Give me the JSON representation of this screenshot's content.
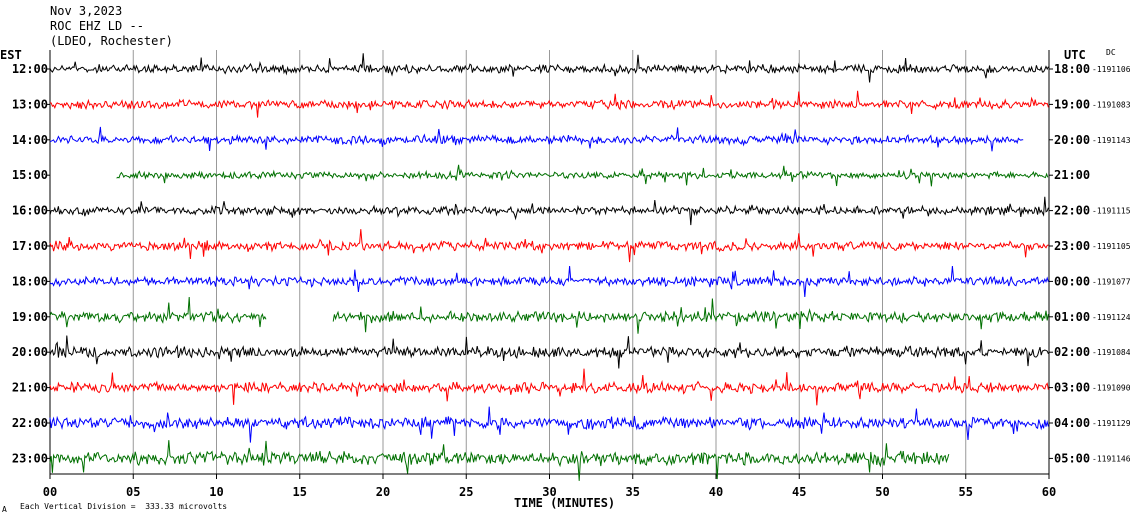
{
  "header": {
    "date": "Nov 3,2023",
    "station": "ROC EHZ LD --",
    "network": "(LDEO, Rochester)"
  },
  "left_zone": "EST",
  "right_zone": "UTC",
  "dc_label": "DC",
  "footer": {
    "scale_note": "Each Vertical Division =  333.33 microvolts",
    "corner_mark": "A"
  },
  "chart_data": {
    "type": "line",
    "title": "Nov 3,2023 ROC EHZ LD -- (LDEO, Rochester)",
    "xlabel": "TIME (MINUTES)",
    "ylabel": "",
    "xlim": [
      0,
      60
    ],
    "x_ticks": [
      "00",
      "05",
      "10",
      "15",
      "20",
      "25",
      "30",
      "35",
      "40",
      "45",
      "50",
      "55",
      "60"
    ],
    "grid": true,
    "trace_colors": [
      "#000000",
      "#ff0000",
      "#0000ff",
      "#007000"
    ],
    "rows": [
      {
        "est": "12:00",
        "utc": "18:00",
        "dc": "-1191106",
        "color": "#000000",
        "start": 0,
        "end": 60,
        "amp": 1.0
      },
      {
        "est": "13:00",
        "utc": "19:00",
        "dc": "-1191083",
        "color": "#ff0000",
        "start": 0,
        "end": 60,
        "amp": 1.0
      },
      {
        "est": "14:00",
        "utc": "20:00",
        "dc": "-1191143",
        "color": "#0000ff",
        "start": 0,
        "end": 58.5,
        "amp": 1.0
      },
      {
        "est": "15:00",
        "utc": "21:00",
        "dc": "",
        "color": "#007000",
        "start": 4,
        "end": 60,
        "amp": 0.8
      },
      {
        "est": "16:00",
        "utc": "22:00",
        "dc": "-1191115",
        "color": "#000000",
        "start": 0,
        "end": 60,
        "amp": 1.0
      },
      {
        "est": "17:00",
        "utc": "23:00",
        "dc": "-1191105",
        "color": "#ff0000",
        "start": 0,
        "end": 60,
        "amp": 1.1
      },
      {
        "est": "18:00",
        "utc": "00:00",
        "dc": "-1191077",
        "color": "#0000ff",
        "start": 0,
        "end": 60,
        "amp": 1.1
      },
      {
        "est": "19:00",
        "utc": "01:00",
        "dc": "-1191124",
        "color": "#007000",
        "start": 0,
        "end": 60,
        "amp": 1.3,
        "gap": [
          13,
          17
        ]
      },
      {
        "est": "20:00",
        "utc": "02:00",
        "dc": "-1191084",
        "color": "#000000",
        "start": 0,
        "end": 60,
        "amp": 1.3
      },
      {
        "est": "21:00",
        "utc": "03:00",
        "dc": "-1191090",
        "color": "#ff0000",
        "start": 0,
        "end": 60,
        "amp": 1.2
      },
      {
        "est": "22:00",
        "utc": "04:00",
        "dc": "-1191129",
        "color": "#0000ff",
        "start": 0,
        "end": 60,
        "amp": 1.4
      },
      {
        "est": "23:00",
        "utc": "05:00",
        "dc": "-1191146",
        "color": "#007000",
        "start": 0,
        "end": 54,
        "amp": 1.6
      }
    ]
  }
}
